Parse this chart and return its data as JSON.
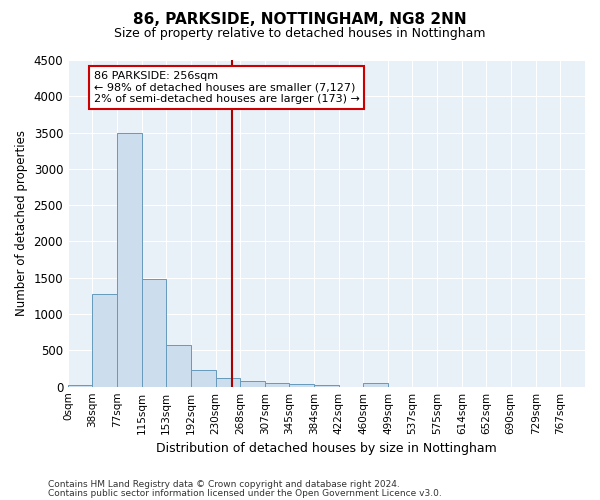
{
  "title": "86, PARKSIDE, NOTTINGHAM, NG8 2NN",
  "subtitle": "Size of property relative to detached houses in Nottingham",
  "xlabel": "Distribution of detached houses by size in Nottingham",
  "ylabel": "Number of detached properties",
  "footnote1": "Contains HM Land Registry data © Crown copyright and database right 2024.",
  "footnote2": "Contains public sector information licensed under the Open Government Licence v3.0.",
  "bar_labels": [
    "0sqm",
    "38sqm",
    "77sqm",
    "115sqm",
    "153sqm",
    "192sqm",
    "230sqm",
    "268sqm",
    "307sqm",
    "345sqm",
    "384sqm",
    "422sqm",
    "460sqm",
    "499sqm",
    "537sqm",
    "575sqm",
    "614sqm",
    "652sqm",
    "690sqm",
    "729sqm",
    "767sqm"
  ],
  "bar_values": [
    30,
    1270,
    3500,
    1480,
    575,
    235,
    115,
    85,
    55,
    40,
    30,
    0,
    55,
    0,
    0,
    0,
    0,
    0,
    0,
    0,
    0
  ],
  "bar_color": "#ccdded",
  "bar_edge_color": "#6699bb",
  "ylim": [
    0,
    4500
  ],
  "yticks": [
    0,
    500,
    1000,
    1500,
    2000,
    2500,
    3000,
    3500,
    4000,
    4500
  ],
  "vline_x": 256,
  "vline_color": "#aa0000",
  "annotation_title": "86 PARKSIDE: 256sqm",
  "annotation_line1": "← 98% of detached houses are smaller (7,127)",
  "annotation_line2": "2% of semi-detached houses are larger (173) →",
  "annotation_box_edge": "#cc0000",
  "bin_edges": [
    0,
    38,
    77,
    115,
    153,
    192,
    230,
    268,
    307,
    345,
    384,
    422,
    460,
    499,
    537,
    575,
    614,
    652,
    690,
    729,
    767,
    806
  ],
  "background_color": "#e8f0f8",
  "title_fontsize": 11,
  "subtitle_fontsize": 9
}
